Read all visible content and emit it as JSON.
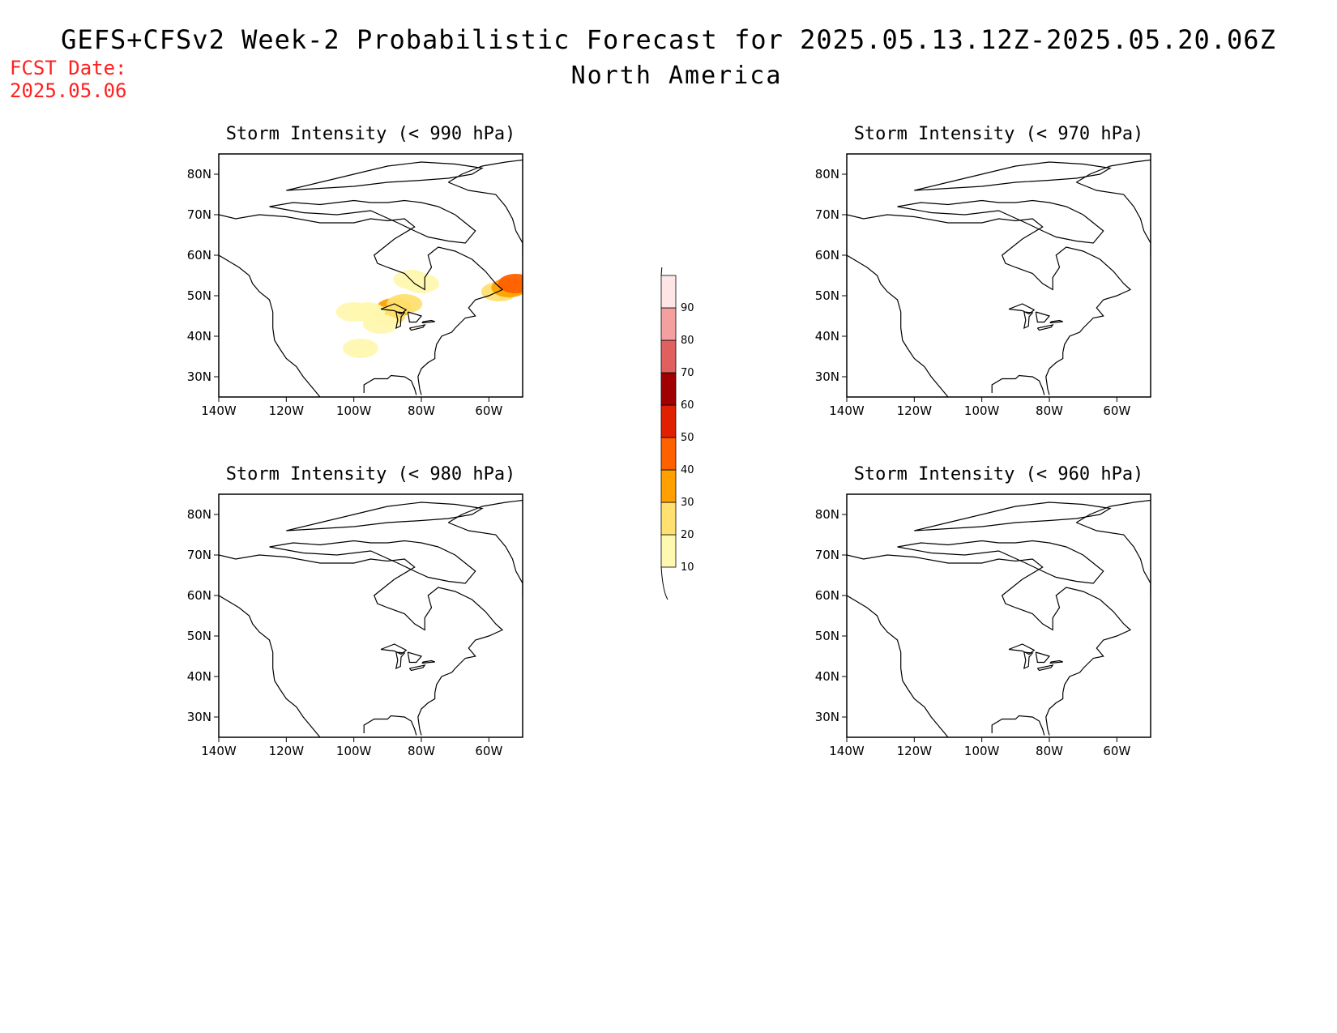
{
  "title": "GEFS+CFSv2 Week-2 Probabilistic Forecast for 2025.05.13.12Z-2025.05.20.06Z",
  "subtitle": "North America",
  "fcst_label": "FCST Date:",
  "fcst_date": "2025.05.06",
  "panels": [
    {
      "id": "p990",
      "title": "Storm Intensity (< 990 hPa)",
      "has_data": true
    },
    {
      "id": "p970",
      "title": "Storm Intensity (< 970 hPa)",
      "has_data": false
    },
    {
      "id": "p980",
      "title": "Storm Intensity (< 980 hPa)",
      "has_data": false
    },
    {
      "id": "p960",
      "title": "Storm Intensity (< 960 hPa)",
      "has_data": false
    }
  ],
  "lat_labels": [
    "80N",
    "70N",
    "60N",
    "50N",
    "40N",
    "30N"
  ],
  "lat_values": [
    80,
    70,
    60,
    50,
    40,
    30
  ],
  "lon_labels": [
    "140W",
    "120W",
    "100W",
    "80W",
    "60W"
  ],
  "lon_values": [
    -140,
    -120,
    -100,
    -80,
    -60
  ],
  "lat_range": [
    25,
    85
  ],
  "lon_range": [
    -140,
    -50
  ],
  "colorbar": {
    "levels": [
      10,
      20,
      30,
      40,
      50,
      60,
      70,
      80,
      90
    ],
    "labels": [
      "10",
      "20",
      "30",
      "40",
      "50",
      "60",
      "70",
      "80",
      "90"
    ],
    "colors": [
      "#fff8b0",
      "#ffe070",
      "#ffa000",
      "#ff6000",
      "#e02000",
      "#a00000",
      "#e06060",
      "#f4a0a0",
      "#ffe6e6"
    ]
  },
  "probability_areas": [
    {
      "lon": -88,
      "lat": 47,
      "level": 30
    },
    {
      "lon": -85,
      "lat": 48,
      "level": 20
    },
    {
      "lon": -90,
      "lat": 45,
      "level": 20
    },
    {
      "lon": -96,
      "lat": 46,
      "level": 10
    },
    {
      "lon": -92,
      "lat": 43,
      "level": 10
    },
    {
      "lon": -100,
      "lat": 46,
      "level": 10
    },
    {
      "lon": -80,
      "lat": 53,
      "level": 10
    },
    {
      "lon": -83,
      "lat": 54,
      "level": 10
    },
    {
      "lon": -98,
      "lat": 37,
      "level": 10
    },
    {
      "lon": -57,
      "lat": 51,
      "level": 20
    },
    {
      "lon": -54,
      "lat": 52,
      "level": 30
    },
    {
      "lon": -52,
      "lat": 53,
      "level": 40
    }
  ]
}
